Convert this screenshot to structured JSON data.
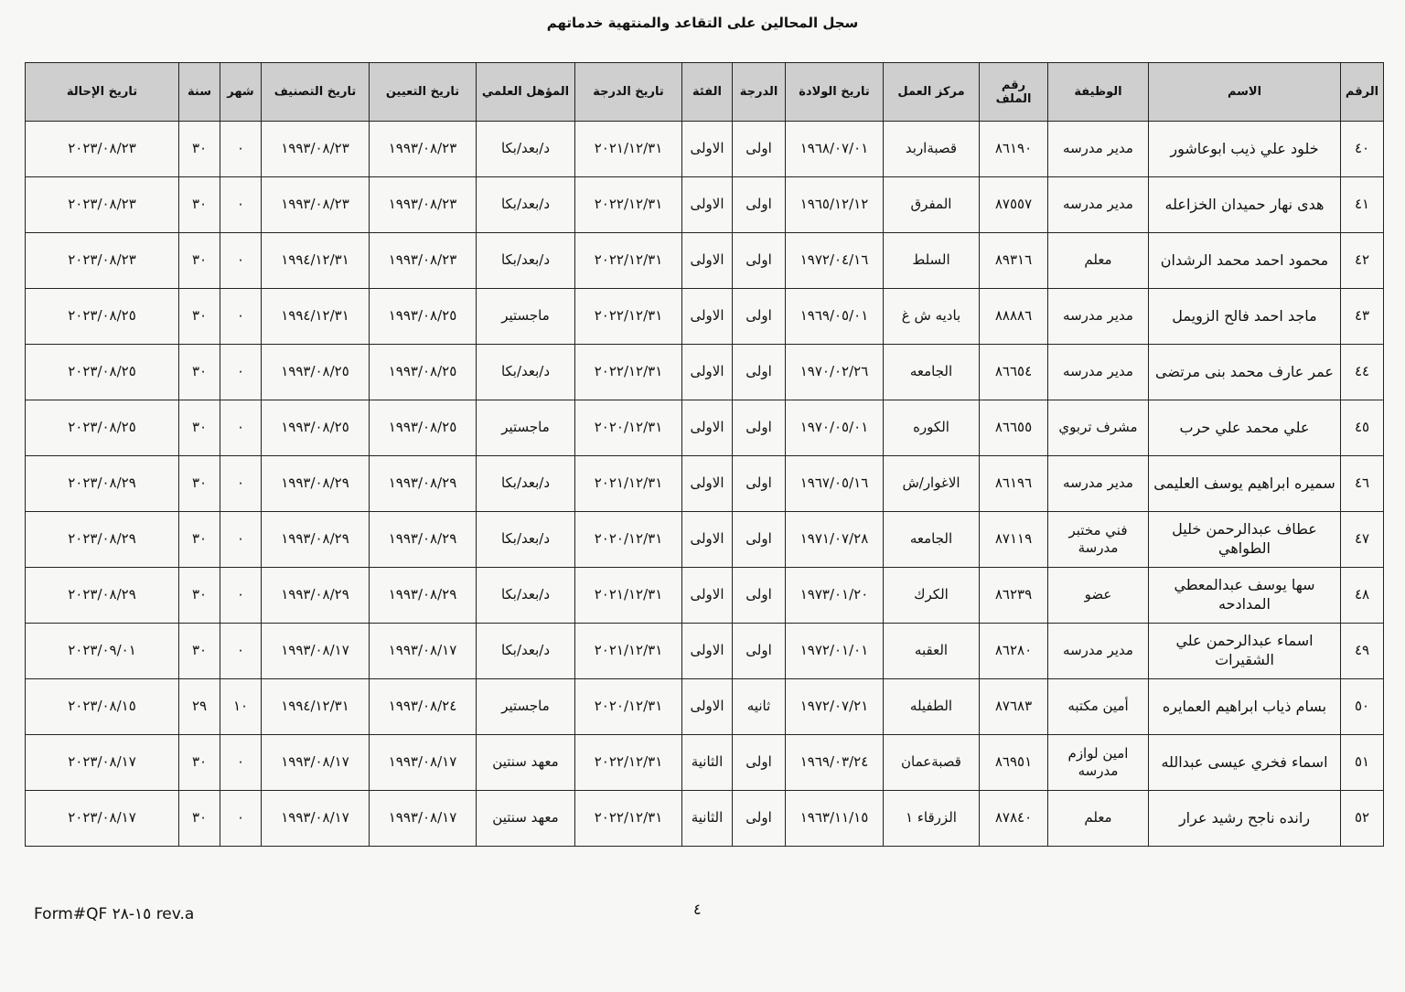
{
  "title": "سجل المحالين على التقاعد والمنتهية خدماتهم",
  "table": {
    "headers": [
      "الرقم",
      "الاسم",
      "الوظيفة",
      "رقم الملف",
      "مركز العمل",
      "تاريخ الولادة",
      "الدرجة",
      "الفئة",
      "تاريخ الدرجة",
      "المؤهل العلمي",
      "تاريخ التعيين",
      "تاريخ التصنيف",
      "شهر",
      "سنة",
      "تاريخ الإحالة"
    ],
    "rows": [
      [
        "٤٠",
        "خلود علي ذيب ابوعاشور",
        "مدير مدرسه",
        "٨٦١٩٠",
        "قصبةاربد",
        "١٩٦٨/٠٧/٠١",
        "اولى",
        "الاولى",
        "٢٠٢١/١٢/٣١",
        "د/بعد/بكا",
        "١٩٩٣/٠٨/٢٣",
        "١٩٩٣/٠٨/٢٣",
        "٠",
        "٣٠",
        "٢٠٢٣/٠٨/٢٣"
      ],
      [
        "٤١",
        "هدى نهار حميدان الخزاعله",
        "مدير مدرسه",
        "٨٧٥٥٧",
        "المفرق",
        "١٩٦٥/١٢/١٢",
        "اولى",
        "الاولى",
        "٢٠٢٢/١٢/٣١",
        "د/بعد/بكا",
        "١٩٩٣/٠٨/٢٣",
        "١٩٩٣/٠٨/٢٣",
        "٠",
        "٣٠",
        "٢٠٢٣/٠٨/٢٣"
      ],
      [
        "٤٢",
        "محمود احمد محمد الرشدان",
        "معلم",
        "٨٩٣١٦",
        "السلط",
        "١٩٧٢/٠٤/١٦",
        "اولى",
        "الاولى",
        "٢٠٢٢/١٢/٣١",
        "د/بعد/بكا",
        "١٩٩٣/٠٨/٢٣",
        "١٩٩٤/١٢/٣١",
        "٠",
        "٣٠",
        "٢٠٢٣/٠٨/٢٣"
      ],
      [
        "٤٣",
        "ماجد احمد فالح الزويمل",
        "مدير مدرسه",
        "٨٨٨٨٦",
        "باديه ش غ",
        "١٩٦٩/٠٥/٠١",
        "اولى",
        "الاولى",
        "٢٠٢٢/١٢/٣١",
        "ماجستير",
        "١٩٩٣/٠٨/٢٥",
        "١٩٩٤/١٢/٣١",
        "٠",
        "٣٠",
        "٢٠٢٣/٠٨/٢٥"
      ],
      [
        "٤٤",
        "عمر عارف محمد بنى مرتضى",
        "مدير مدرسه",
        "٨٦٦٥٤",
        "الجامعه",
        "١٩٧٠/٠٢/٢٦",
        "اولى",
        "الاولى",
        "٢٠٢٢/١٢/٣١",
        "د/بعد/بكا",
        "١٩٩٣/٠٨/٢٥",
        "١٩٩٣/٠٨/٢٥",
        "٠",
        "٣٠",
        "٢٠٢٣/٠٨/٢٥"
      ],
      [
        "٤٥",
        "علي محمد علي حرب",
        "مشرف تربوي",
        "٨٦٦٥٥",
        "الكوره",
        "١٩٧٠/٠٥/٠١",
        "اولى",
        "الاولى",
        "٢٠٢٠/١٢/٣١",
        "ماجستير",
        "١٩٩٣/٠٨/٢٥",
        "١٩٩٣/٠٨/٢٥",
        "٠",
        "٣٠",
        "٢٠٢٣/٠٨/٢٥"
      ],
      [
        "٤٦",
        "سميره ابراهيم يوسف العليمى",
        "مدير مدرسه",
        "٨٦١٩٦",
        "الاغوار/ش",
        "١٩٦٧/٠٥/١٦",
        "اولى",
        "الاولى",
        "٢٠٢١/١٢/٣١",
        "د/بعد/بكا",
        "١٩٩٣/٠٨/٢٩",
        "١٩٩٣/٠٨/٢٩",
        "٠",
        "٣٠",
        "٢٠٢٣/٠٨/٢٩"
      ],
      [
        "٤٧",
        "عطاف عبدالرحمن خليل الطواهي",
        "فني مختبر مدرسة",
        "٨٧١١٩",
        "الجامعه",
        "١٩٧١/٠٧/٢٨",
        "اولى",
        "الاولى",
        "٢٠٢٠/١٢/٣١",
        "د/بعد/بكا",
        "١٩٩٣/٠٨/٢٩",
        "١٩٩٣/٠٨/٢٩",
        "٠",
        "٣٠",
        "٢٠٢٣/٠٨/٢٩"
      ],
      [
        "٤٨",
        "سها يوسف عبدالمعطي المدادحه",
        "عضو",
        "٨٦٢٣٩",
        "الكرك",
        "١٩٧٣/٠١/٢٠",
        "اولى",
        "الاولى",
        "٢٠٢١/١٢/٣١",
        "د/بعد/بكا",
        "١٩٩٣/٠٨/٢٩",
        "١٩٩٣/٠٨/٢٩",
        "٠",
        "٣٠",
        "٢٠٢٣/٠٨/٢٩"
      ],
      [
        "٤٩",
        "اسماء عبدالرحمن علي الشقيرات",
        "مدير مدرسه",
        "٨٦٢٨٠",
        "العقبه",
        "١٩٧٢/٠١/٠١",
        "اولى",
        "الاولى",
        "٢٠٢١/١٢/٣١",
        "د/بعد/بكا",
        "١٩٩٣/٠٨/١٧",
        "١٩٩٣/٠٨/١٧",
        "٠",
        "٣٠",
        "٢٠٢٣/٠٩/٠١"
      ],
      [
        "٥٠",
        "بسام ذياب ابراهيم العمايره",
        "أمين مكتبه",
        "٨٧٦٨٣",
        "الطفيله",
        "١٩٧٢/٠٧/٢١",
        "ثانيه",
        "الاولى",
        "٢٠٢٠/١٢/٣١",
        "ماجستير",
        "١٩٩٣/٠٨/٢٤",
        "١٩٩٤/١٢/٣١",
        "١٠",
        "٢٩",
        "٢٠٢٣/٠٨/١٥"
      ],
      [
        "٥١",
        "اسماء فخري عيسى عبدالله",
        "امين لوازم مدرسه",
        "٨٦٩٥١",
        "قصبةعمان",
        "١٩٦٩/٠٣/٢٤",
        "اولى",
        "الثانية",
        "٢٠٢٢/١٢/٣١",
        "معهد سنتين",
        "١٩٩٣/٠٨/١٧",
        "١٩٩٣/٠٨/١٧",
        "٠",
        "٣٠",
        "٢٠٢٣/٠٨/١٧"
      ],
      [
        "٥٢",
        "رانده ناجح رشيد عرار",
        "معلم",
        "٨٧٨٤٠",
        "الزرقاء ١",
        "١٩٦٣/١١/١٥",
        "اولى",
        "الثانية",
        "٢٠٢٢/١٢/٣١",
        "معهد سنتين",
        "١٩٩٣/٠٨/١٧",
        "١٩٩٣/٠٨/١٧",
        "٠",
        "٣٠",
        "٢٠٢٣/٠٨/١٧"
      ]
    ]
  },
  "footer": {
    "form": "Form#QF ٢٨-١٥ rev.a",
    "page": "٤"
  }
}
